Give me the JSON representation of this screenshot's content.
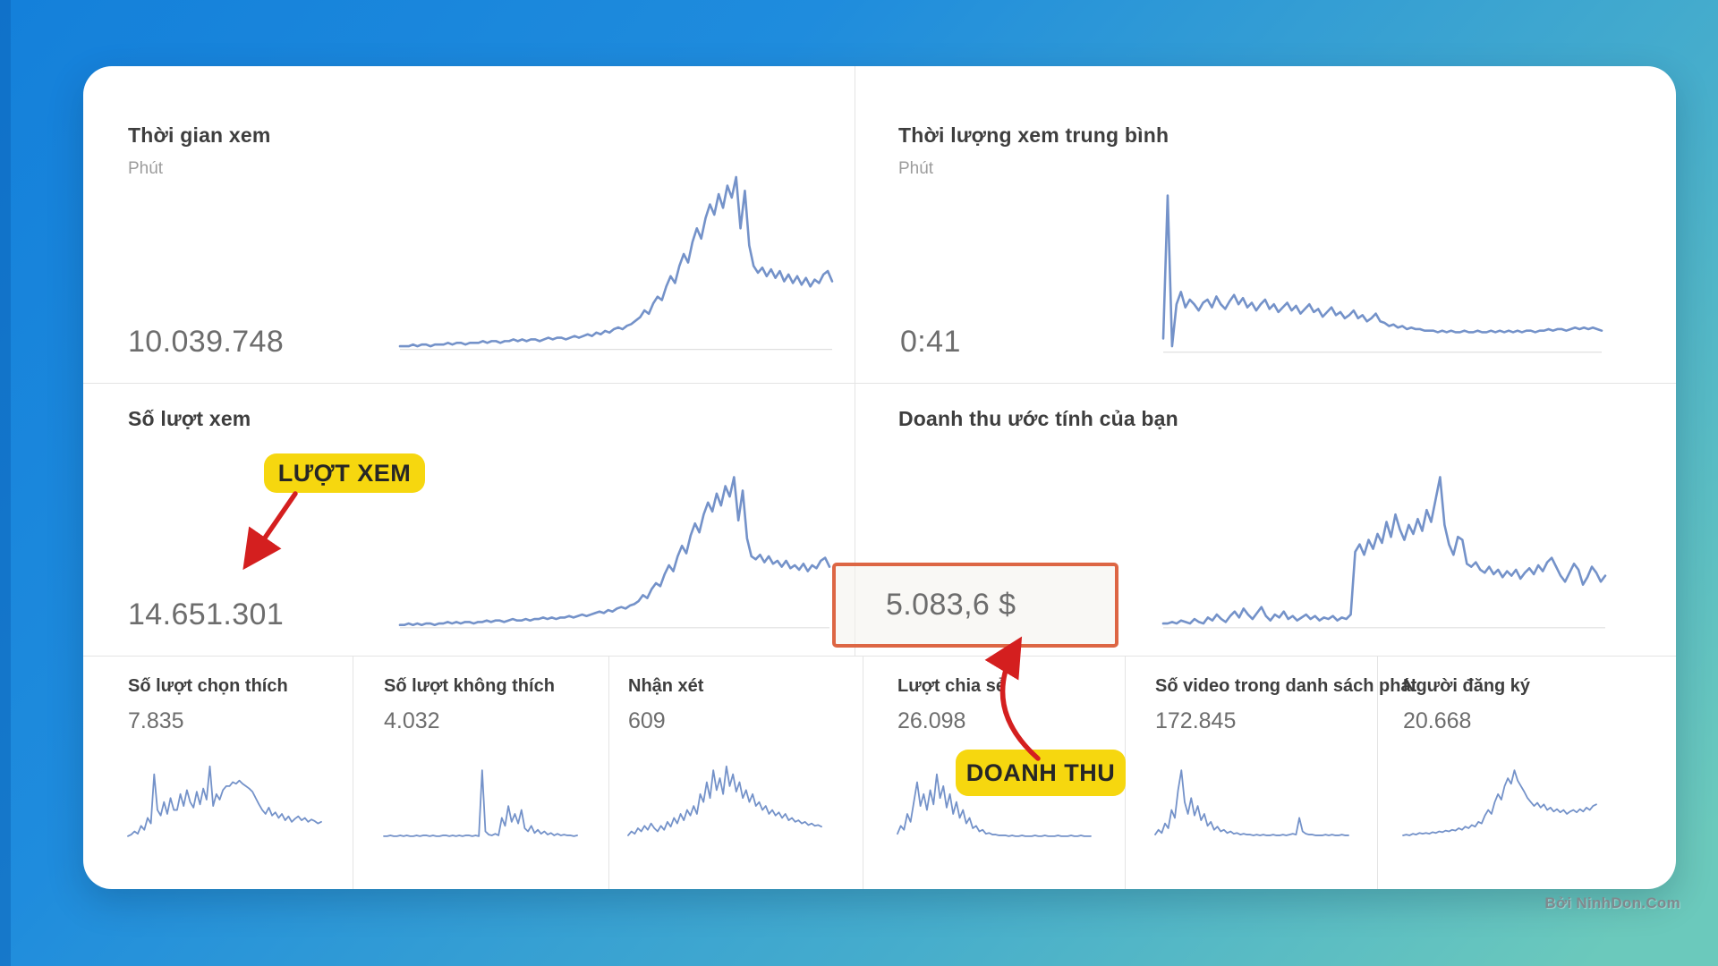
{
  "colors": {
    "background_gradient_start": "#1480da",
    "background_gradient_end": "#6bc9bc",
    "card": "#ffffff",
    "chart_line": "#7492c9",
    "baseline": "#dfdfdf",
    "divider": "#e4e4e4",
    "title_text": "#3e3e3e",
    "subtitle_text": "#9c9c9c",
    "value_text": "#6d6d6d",
    "badge_bg": "#f6d70f",
    "badge_text": "#262626",
    "arrow": "#d41f1f",
    "highlight_box_border": "#dd6644"
  },
  "panels": {
    "watch_time": {
      "title": "Thời gian xem",
      "unit": "Phút",
      "value": "10.039.748"
    },
    "avg_view_duration": {
      "title": "Thời lượng xem trung bình",
      "unit": "Phút",
      "value": "0:41"
    },
    "views": {
      "title": "Số lượt xem",
      "value": "14.651.301"
    },
    "revenue": {
      "title": "Doanh thu ước tính của bạn",
      "value": "5.083,6 $"
    }
  },
  "mini_panels": [
    {
      "title": "Số lượt chọn thích",
      "value": "7.835"
    },
    {
      "title": "Số lượt không thích",
      "value": "4.032"
    },
    {
      "title": "Nhận xét",
      "value": "609"
    },
    {
      "title": "Lượt chia sẻ",
      "value": "26.098"
    },
    {
      "title": "Số video trong danh sách phát",
      "value": "172.845"
    },
    {
      "title": "Người đăng ký",
      "value": "20.668"
    }
  ],
  "annotations": {
    "views_label": "LƯỢT XEM",
    "revenue_label": "DOANH THU"
  },
  "watermark": "Bởi NinhDon.Com",
  "charts": {
    "watch_time": {
      "type": "line",
      "baseline": true,
      "stroke": 2.6,
      "values": [
        1,
        1,
        1,
        2,
        1,
        2,
        2,
        1,
        2,
        2,
        2,
        3,
        2,
        3,
        3,
        2,
        3,
        3,
        3,
        4,
        3,
        4,
        4,
        3,
        4,
        4,
        5,
        4,
        5,
        4,
        5,
        5,
        4,
        5,
        6,
        5,
        6,
        6,
        5,
        6,
        7,
        6,
        7,
        8,
        7,
        9,
        8,
        10,
        9,
        11,
        12,
        11,
        13,
        14,
        16,
        18,
        22,
        20,
        26,
        30,
        28,
        36,
        42,
        38,
        48,
        55,
        50,
        62,
        70,
        64,
        76,
        84,
        78,
        90,
        82,
        95,
        88,
        100,
        70,
        92,
        60,
        48,
        44,
        47,
        42,
        46,
        41,
        45,
        39,
        43,
        38,
        42,
        37,
        41,
        36,
        40,
        38,
        43,
        45,
        39
      ]
    },
    "avg_view_duration": {
      "type": "line",
      "baseline": true,
      "stroke": 2.6,
      "values": [
        8,
        100,
        3,
        30,
        38,
        28,
        33,
        30,
        26,
        31,
        33,
        28,
        35,
        30,
        27,
        32,
        36,
        30,
        34,
        28,
        31,
        26,
        30,
        33,
        27,
        30,
        25,
        28,
        31,
        26,
        29,
        24,
        27,
        30,
        25,
        27,
        22,
        25,
        28,
        23,
        25,
        21,
        23,
        26,
        21,
        23,
        19,
        21,
        24,
        19,
        18,
        16,
        17,
        15,
        16,
        14,
        15,
        14,
        14,
        13,
        13,
        13,
        12,
        13,
        12,
        13,
        12,
        12,
        13,
        12,
        12,
        13,
        12,
        12,
        13,
        12,
        13,
        12,
        13,
        12,
        13,
        12,
        13,
        13,
        12,
        13,
        13,
        14,
        13,
        14,
        14,
        13,
        14,
        15,
        14,
        15,
        14,
        15,
        14,
        13
      ]
    },
    "views": {
      "type": "line",
      "baseline": true,
      "stroke": 2.6,
      "values": [
        1,
        1,
        2,
        1,
        2,
        1,
        2,
        2,
        1,
        2,
        2,
        3,
        2,
        3,
        2,
        3,
        3,
        2,
        3,
        3,
        4,
        3,
        4,
        4,
        3,
        4,
        5,
        4,
        4,
        5,
        4,
        5,
        5,
        6,
        5,
        6,
        5,
        6,
        6,
        7,
        6,
        7,
        8,
        7,
        8,
        9,
        10,
        9,
        11,
        10,
        12,
        13,
        12,
        14,
        15,
        17,
        21,
        19,
        25,
        29,
        27,
        35,
        41,
        37,
        47,
        54,
        49,
        61,
        69,
        63,
        75,
        83,
        77,
        89,
        81,
        94,
        87,
        100,
        71,
        91,
        59,
        47,
        45,
        48,
        43,
        47,
        42,
        44,
        40,
        44,
        39,
        41,
        38,
        42,
        37,
        41,
        39,
        44,
        46,
        40
      ]
    },
    "revenue": {
      "type": "line",
      "baseline": true,
      "stroke": 2.6,
      "values": [
        2,
        2,
        3,
        2,
        4,
        3,
        2,
        5,
        3,
        2,
        6,
        4,
        8,
        5,
        3,
        7,
        10,
        6,
        12,
        8,
        5,
        9,
        13,
        7,
        4,
        8,
        6,
        10,
        5,
        7,
        4,
        6,
        8,
        5,
        7,
        4,
        6,
        5,
        7,
        4,
        6,
        5,
        8,
        50,
        55,
        48,
        58,
        52,
        62,
        56,
        70,
        60,
        75,
        65,
        58,
        68,
        62,
        72,
        64,
        78,
        70,
        85,
        100,
        68,
        55,
        48,
        60,
        58,
        42,
        40,
        43,
        38,
        36,
        40,
        35,
        38,
        33,
        37,
        34,
        38,
        32,
        36,
        39,
        35,
        41,
        37,
        43,
        46,
        40,
        34,
        30,
        36,
        42,
        38,
        28,
        33,
        40,
        36,
        30,
        34
      ]
    },
    "mini_0": {
      "type": "line",
      "stroke": 1.8,
      "values": [
        2,
        4,
        8,
        5,
        15,
        10,
        25,
        18,
        80,
        35,
        28,
        45,
        30,
        50,
        35,
        35,
        55,
        40,
        60,
        45,
        38,
        58,
        42,
        62,
        48,
        90,
        40,
        55,
        48,
        60,
        65,
        65,
        70,
        68,
        72,
        68,
        65,
        62,
        58,
        50,
        42,
        35,
        30,
        38,
        28,
        32,
        25,
        30,
        22,
        27,
        20,
        24,
        27,
        22,
        25,
        20,
        23,
        21,
        18,
        20
      ]
    },
    "mini_1": {
      "type": "line",
      "stroke": 1.8,
      "values": [
        2,
        2,
        3,
        2,
        2,
        3,
        2,
        3,
        2,
        2,
        3,
        2,
        3,
        3,
        2,
        3,
        2,
        2,
        3,
        3,
        2,
        3,
        2,
        3,
        2,
        3,
        3,
        2,
        3,
        2,
        85,
        8,
        4,
        3,
        5,
        3,
        25,
        15,
        40,
        20,
        30,
        18,
        35,
        12,
        8,
        15,
        6,
        10,
        5,
        8,
        4,
        6,
        3,
        5,
        3,
        4,
        3,
        3,
        2,
        3
      ]
    },
    "mini_2": {
      "type": "line",
      "stroke": 1.8,
      "values": [
        3,
        8,
        5,
        12,
        8,
        15,
        10,
        18,
        12,
        8,
        15,
        10,
        20,
        14,
        25,
        18,
        30,
        22,
        35,
        28,
        40,
        30,
        55,
        45,
        70,
        50,
        85,
        60,
        75,
        55,
        90,
        65,
        80,
        58,
        70,
        50,
        60,
        45,
        55,
        40,
        45,
        35,
        40,
        30,
        35,
        28,
        32,
        25,
        30,
        22,
        25,
        20,
        22,
        18,
        20,
        16,
        18,
        15,
        16,
        14
      ]
    },
    "mini_3": {
      "type": "line",
      "stroke": 1.8,
      "values": [
        5,
        15,
        10,
        30,
        20,
        45,
        70,
        40,
        55,
        35,
        60,
        42,
        80,
        50,
        65,
        38,
        55,
        30,
        45,
        25,
        35,
        18,
        25,
        12,
        15,
        8,
        10,
        5,
        6,
        4,
        4,
        3,
        3,
        3,
        2,
        3,
        2,
        2,
        3,
        2,
        2,
        2,
        3,
        2,
        2,
        3,
        2,
        2,
        2,
        3,
        2,
        2,
        2,
        3,
        2,
        2,
        3,
        2,
        2,
        2
      ]
    },
    "mini_4": {
      "type": "line",
      "stroke": 1.8,
      "values": [
        4,
        10,
        6,
        18,
        12,
        35,
        25,
        60,
        85,
        45,
        30,
        50,
        28,
        40,
        22,
        30,
        15,
        20,
        10,
        14,
        8,
        10,
        6,
        8,
        5,
        6,
        4,
        5,
        4,
        4,
        3,
        4,
        3,
        4,
        3,
        3,
        4,
        3,
        3,
        4,
        3,
        4,
        5,
        4,
        25,
        8,
        5,
        4,
        4,
        3,
        3,
        3,
        4,
        3,
        4,
        3,
        3,
        4,
        3,
        3
      ]
    },
    "mini_5": {
      "type": "line",
      "stroke": 1.8,
      "values": [
        3,
        4,
        3,
        5,
        4,
        6,
        5,
        6,
        5,
        7,
        6,
        8,
        7,
        9,
        8,
        10,
        9,
        12,
        10,
        14,
        12,
        16,
        14,
        20,
        18,
        28,
        35,
        30,
        45,
        55,
        48,
        65,
        75,
        68,
        85,
        72,
        65,
        58,
        50,
        45,
        40,
        44,
        38,
        42,
        35,
        38,
        33,
        36,
        32,
        35,
        30,
        33,
        35,
        32,
        36,
        33,
        38,
        35,
        40,
        42
      ]
    }
  }
}
